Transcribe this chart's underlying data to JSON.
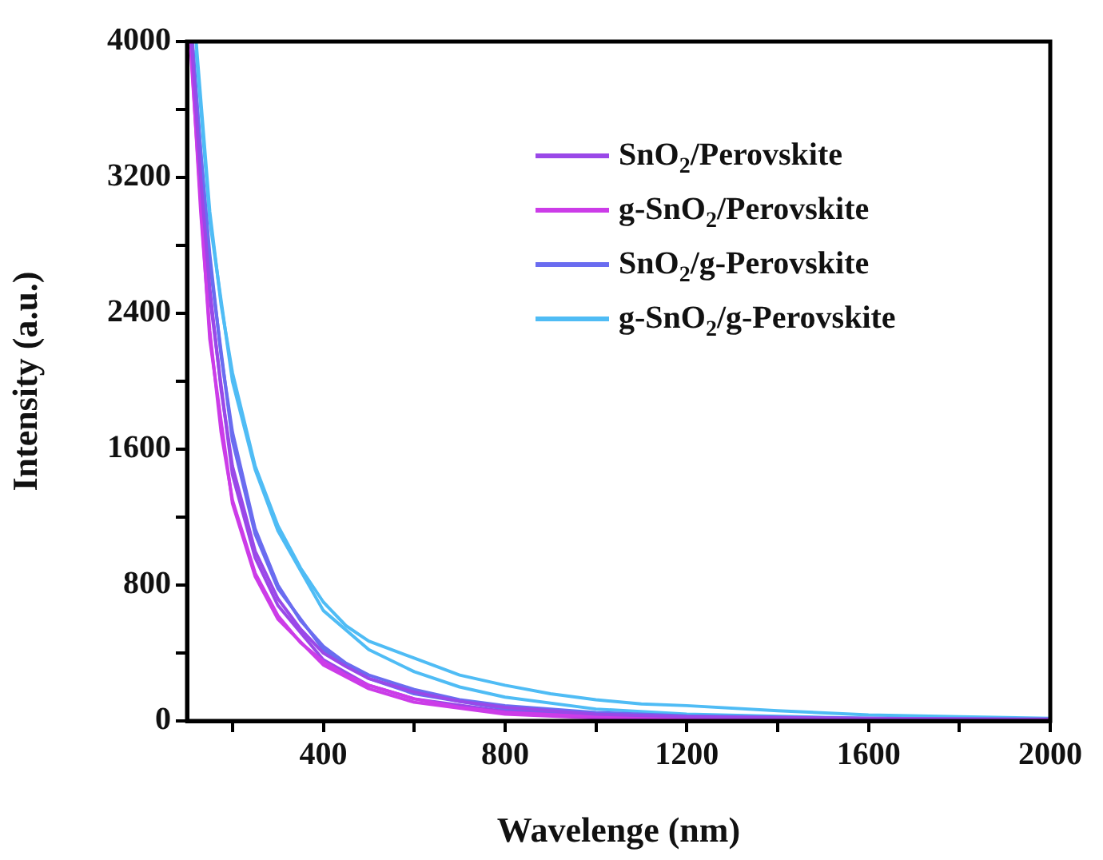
{
  "chart_data": {
    "type": "line",
    "xlabel": "Wavelenge (nm)",
    "ylabel": "Intensity (a.u.)",
    "xlim": [
      100,
      2000
    ],
    "xticks": [
      {
        "value": 200,
        "label": null
      },
      400,
      {
        "value": 600,
        "label": null
      },
      800,
      {
        "value": 1000,
        "label": null
      },
      1200,
      {
        "value": 1400,
        "label": null
      },
      1600,
      {
        "value": 1800,
        "label": null
      },
      2000
    ],
    "ylim": [
      0,
      4000
    ],
    "yticks": [
      0,
      {
        "value": 400,
        "label": null
      },
      800,
      {
        "value": 1200,
        "label": null
      },
      1600,
      {
        "value": 2000,
        "label": null
      },
      2400,
      {
        "value": 2800,
        "label": null
      },
      3200,
      {
        "value": 3600,
        "label": null
      },
      4000
    ],
    "grid": false,
    "legend": "top right",
    "marker": "none",
    "line_style": "solid",
    "series": [
      {
        "name": "SnO$_{2}$/Perovskite",
        "color": "#9a48e8",
        "x": [
          110,
          130,
          150,
          175,
          200,
          250,
          300,
          350,
          400,
          450,
          500,
          600,
          700,
          800,
          1000,
          1200,
          1600,
          2000
        ],
        "values": [
          4000,
          3200,
          2550,
          1950,
          1500,
          1000,
          720,
          540,
          400,
          320,
          250,
          170,
          115,
          80,
          40,
          25,
          15,
          10
        ]
      },
      {
        "name": "g-SnO$_{2}$/Perovskite",
        "color": "#cc3ce8",
        "x": [
          108,
          130,
          150,
          175,
          200,
          250,
          300,
          350,
          400,
          450,
          500,
          600,
          700,
          800,
          1000,
          1200,
          1600,
          2000
        ],
        "values": [
          4000,
          3000,
          2300,
          1700,
          1300,
          870,
          620,
          460,
          350,
          270,
          210,
          130,
          80,
          50,
          25,
          15,
          8,
          5
        ]
      },
      {
        "name": "SnO$_{2}$/g-Perovskite",
        "color": "#6a6cf0",
        "x": [
          112,
          130,
          150,
          175,
          200,
          250,
          300,
          350,
          400,
          450,
          500,
          600,
          700,
          800,
          1000,
          1200,
          1600,
          2000
        ],
        "values": [
          4000,
          3350,
          2750,
          2150,
          1700,
          1130,
          800,
          590,
          440,
          340,
          270,
          185,
          125,
          90,
          50,
          30,
          15,
          10
        ]
      },
      {
        "name": "g-SnO$_{2}$/g-Perovskite",
        "color": "#4fbcf5",
        "x": [
          120,
          150,
          175,
          200,
          250,
          300,
          350,
          400,
          450,
          500,
          600,
          700,
          800,
          900,
          1000,
          1100,
          1200,
          1400,
          1600,
          1800,
          2000
        ],
        "values": [
          4000,
          3000,
          2450,
          2050,
          1500,
          1150,
          900,
          700,
          560,
          470,
          370,
          270,
          210,
          160,
          125,
          100,
          90,
          60,
          35,
          25,
          15
        ]
      },
      {
        "color": "#9a48e8",
        "x": [
          110,
          150,
          200,
          250,
          300,
          400,
          500,
          600,
          800,
          1000,
          1400,
          2000
        ],
        "values": [
          3950,
          2500,
          1450,
          960,
          680,
          360,
          210,
          130,
          55,
          25,
          10,
          5
        ]
      },
      {
        "color": "#cc3ce8",
        "x": [
          108,
          150,
          200,
          250,
          300,
          400,
          500,
          600,
          800,
          1000,
          1400,
          2000
        ],
        "values": [
          3950,
          2250,
          1280,
          850,
          600,
          330,
          190,
          110,
          40,
          18,
          6,
          3
        ]
      },
      {
        "color": "#6a6cf0",
        "x": [
          112,
          150,
          200,
          250,
          300,
          400,
          500,
          600,
          800,
          1000,
          1400,
          2000
        ],
        "values": [
          3950,
          2700,
          1650,
          1100,
          780,
          420,
          250,
          160,
          70,
          35,
          12,
          6
        ]
      },
      {
        "color": "#4fbcf5",
        "x": [
          120,
          150,
          200,
          250,
          300,
          400,
          500,
          600,
          700,
          800,
          1000,
          1200,
          1600,
          2000
        ],
        "values": [
          3950,
          2950,
          2000,
          1480,
          1120,
          650,
          420,
          290,
          200,
          140,
          70,
          40,
          15,
          8
        ]
      }
    ]
  }
}
